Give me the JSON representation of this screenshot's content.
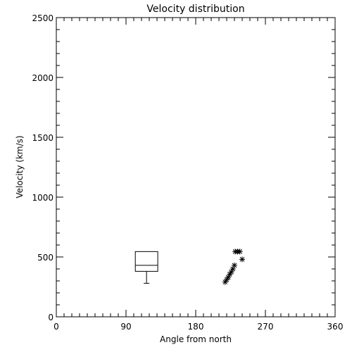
{
  "chart_data": {
    "type": "scatter",
    "title": "Velocity distribution",
    "xlabel": "Angle from north",
    "ylabel": "Velocity (km/s)",
    "xlim": [
      0,
      360
    ],
    "ylim": [
      0,
      2500
    ],
    "xticks": [
      0,
      90,
      180,
      270,
      360
    ],
    "yticks": [
      0,
      500,
      1000,
      1500,
      2000,
      2500
    ],
    "x_tick_labels": [
      "0",
      "90",
      "180",
      "270",
      "360"
    ],
    "y_tick_labels": [
      "0",
      "500",
      "1000",
      "1500",
      "2000",
      "2500"
    ],
    "grid": false,
    "boxplot": {
      "x_left": 102,
      "x_right": 131,
      "q1": 380,
      "median": 430,
      "q3": 545,
      "whisker_low": 280,
      "whisker_high": 545
    },
    "series": [
      {
        "marker": "asterisk",
        "points": [
          {
            "x": 218,
            "y": 290
          },
          {
            "x": 220,
            "y": 310
          },
          {
            "x": 222,
            "y": 330
          },
          {
            "x": 224,
            "y": 355
          },
          {
            "x": 226,
            "y": 375
          },
          {
            "x": 228,
            "y": 400
          },
          {
            "x": 230,
            "y": 430
          },
          {
            "x": 231,
            "y": 545
          },
          {
            "x": 234,
            "y": 545
          },
          {
            "x": 237,
            "y": 545
          },
          {
            "x": 240,
            "y": 480
          }
        ]
      }
    ]
  }
}
